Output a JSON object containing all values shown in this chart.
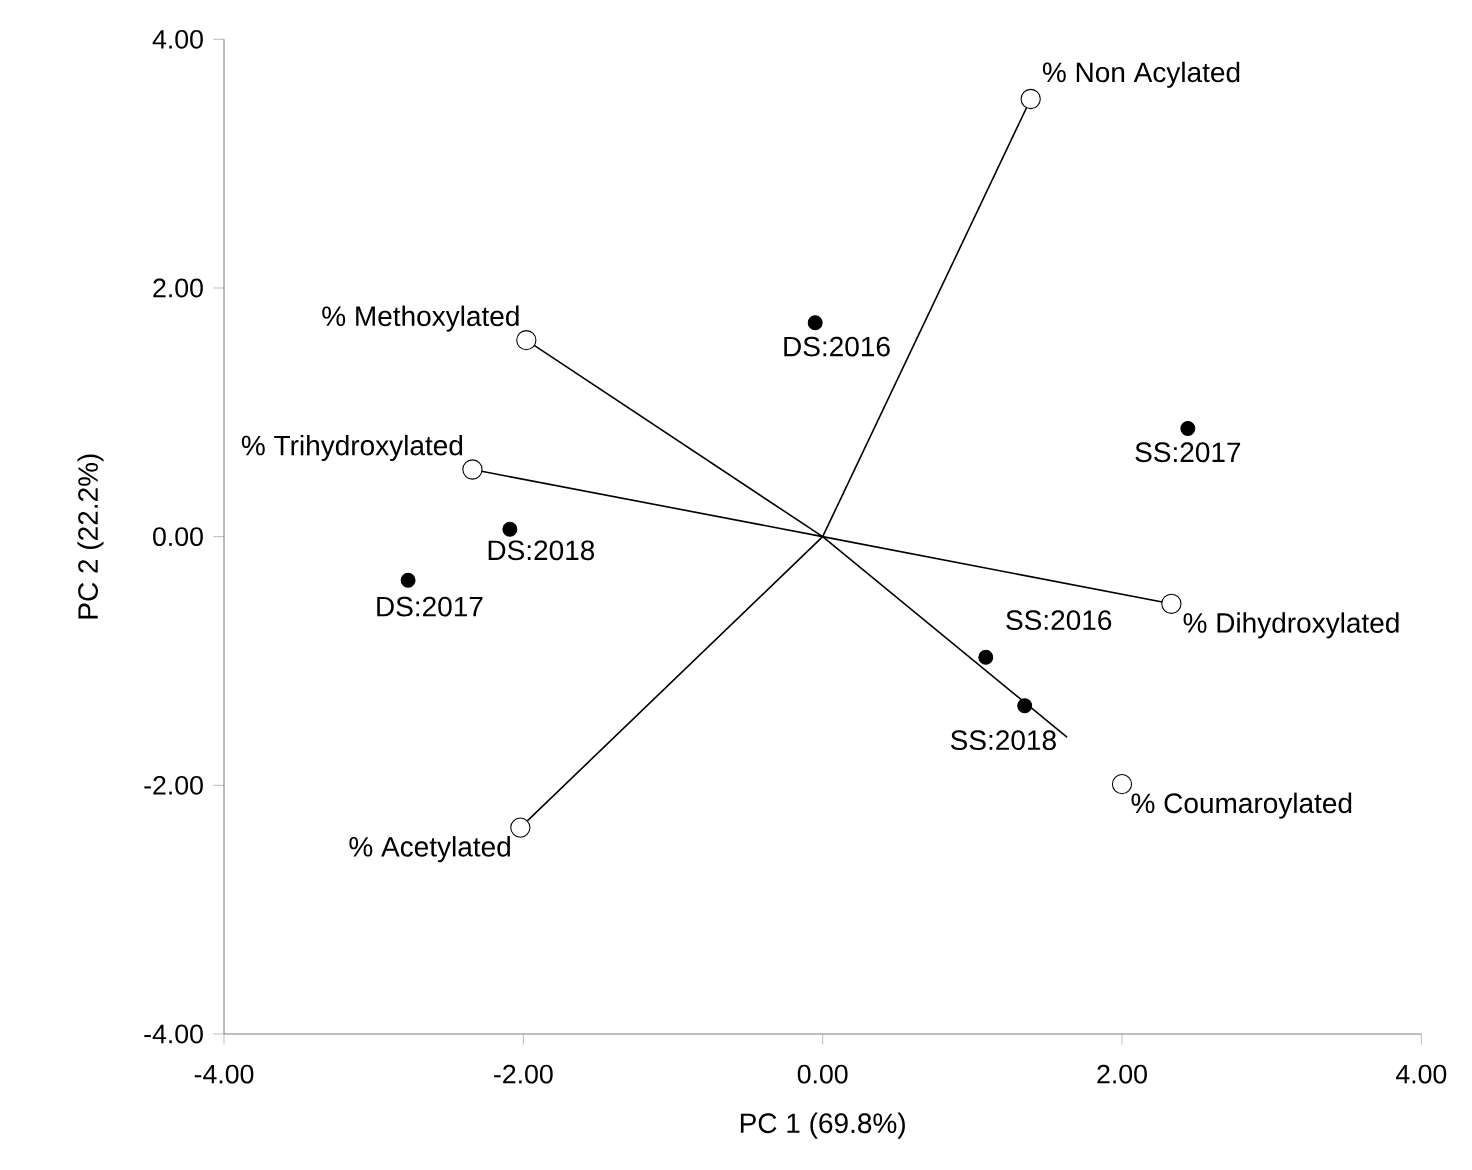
{
  "chart_data": {
    "type": "scatter",
    "xlabel": "PC 1 (69.8%)",
    "ylabel": "PC 2 (22.2%)",
    "xlim": [
      -4,
      4
    ],
    "ylim": [
      -4,
      4
    ],
    "xticks": [
      {
        "value": -4,
        "label": "-4.00"
      },
      {
        "value": -2,
        "label": "-2.00"
      },
      {
        "value": 0,
        "label": "0.00"
      },
      {
        "value": 2,
        "label": "2.00"
      },
      {
        "value": 4,
        "label": "4.00"
      }
    ],
    "yticks": [
      {
        "value": -4,
        "label": "-4.00"
      },
      {
        "value": -2,
        "label": "-2.00"
      },
      {
        "value": 0,
        "label": "0.00"
      },
      {
        "value": 2,
        "label": "2.00"
      },
      {
        "value": 4,
        "label": "4.00"
      }
    ],
    "series": [
      {
        "type": "line",
        "color": "#000000",
        "marker": "none",
        "x": [
          0,
          1.39,
          null,
          0,
          -1.98,
          null,
          0,
          -2.34,
          null,
          0,
          2.33,
          null,
          0,
          1.63,
          null,
          0,
          -2.02
        ],
        "values": [
          0,
          3.52,
          null,
          0,
          1.58,
          null,
          0,
          0.54,
          null,
          0,
          -0.54,
          null,
          0,
          -1.61,
          null,
          0,
          -2.34
        ]
      },
      {
        "color": "#000000",
        "marker": "circle",
        "x": [
          -0.05,
          2.44,
          -2.09,
          -2.77,
          1.09,
          1.35
        ],
        "values": [
          1.72,
          0.87,
          0.06,
          -0.35,
          -0.97,
          -1.36
        ]
      },
      {
        "color": "#ffffff",
        "marker": "circle",
        "x": [
          1.39,
          -1.98,
          -2.34,
          2.33,
          2.0,
          -2.02
        ],
        "values": [
          3.52,
          1.58,
          0.54,
          -0.54,
          -1.99,
          -2.34
        ]
      }
    ],
    "annotations": [
      {
        "text": "DS:2016",
        "x": -0.05,
        "y": 1.72
      },
      {
        "text": "SS:2017",
        "x": 2.44,
        "y": 0.87
      },
      {
        "text": "DS:2018",
        "x": -2.09,
        "y": 0.06
      },
      {
        "text": "DS:2017",
        "x": -2.77,
        "y": -0.35
      },
      {
        "text": "SS:2016",
        "x": 1.09,
        "y": -0.97
      },
      {
        "text": "SS:2018",
        "x": 1.35,
        "y": -1.36
      },
      {
        "text": "% Non Acylated",
        "x": 1.39,
        "y": 3.52
      },
      {
        "text": "% Methoxylated",
        "x": -1.98,
        "y": 1.58
      },
      {
        "text": "% Trihydroxylated",
        "x": -2.34,
        "y": 0.54
      },
      {
        "text": "% Dihydroxylated",
        "x": 2.33,
        "y": -0.54
      },
      {
        "text": "% Coumaroylated",
        "x": 2.0,
        "y": -1.99
      },
      {
        "text": "% Acetylated",
        "x": -2.02,
        "y": -2.34
      }
    ]
  }
}
